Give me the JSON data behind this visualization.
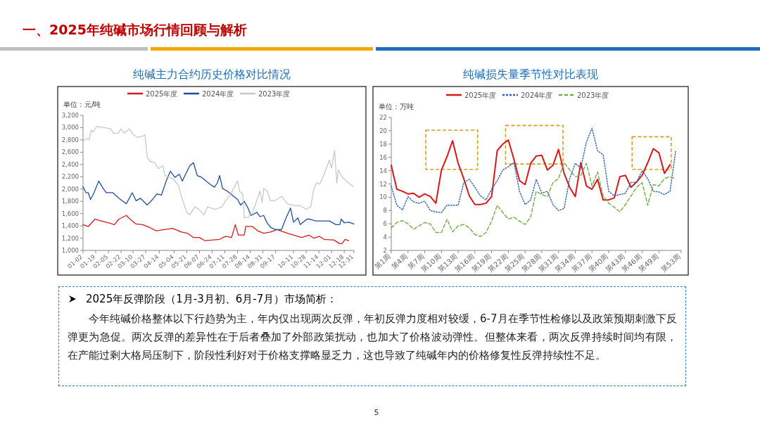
{
  "chart_data": [
    {
      "type": "other",
      "title": "一、2025年纯碱市场行情回顾与解析",
      "annotations": [
        "5"
      ]
    },
    {
      "type": "line",
      "title": "纯碱主力合约历史价格对比情况",
      "ylabel": "单位：元/吨",
      "legend": "top",
      "line_style": "solid",
      "xlim": [
        "--01-02",
        "--12-31"
      ],
      "ylim": [
        1000,
        3200
      ],
      "xticks": [
        {
          "value": "--01-02",
          "label": "01-02"
        },
        {
          "value": "--01-19",
          "label": "01-19"
        },
        {
          "value": "--02-05",
          "label": "02-05"
        },
        {
          "value": "--02-22",
          "label": "02-22"
        },
        {
          "value": "--03-10",
          "label": "03-10"
        },
        {
          "value": "--03-27",
          "label": "03-27"
        },
        {
          "value": "--04-14",
          "label": "04-14"
        },
        {
          "value": "--05-04",
          "label": "05-04"
        },
        {
          "value": "--05-21",
          "label": "05-21"
        },
        {
          "value": "--06-07",
          "label": "06-07"
        },
        {
          "value": "--06-24",
          "label": "06-24"
        },
        {
          "value": "--07-11",
          "label": "07-11"
        },
        {
          "value": "--07-28",
          "label": "07-28"
        },
        {
          "value": "--08-14",
          "label": "08-14"
        },
        {
          "value": "--08-31",
          "label": "08-31"
        },
        {
          "value": "--09-17",
          "label": "09-17"
        },
        {
          "value": "--10-11",
          "label": "10-11"
        },
        {
          "value": "--10-28",
          "label": "10-28"
        },
        {
          "value": "--11-14",
          "label": "11-14"
        },
        {
          "value": "--12-01",
          "label": "12-01"
        },
        {
          "value": "--12-18",
          "label": "12-18"
        },
        {
          "value": "--12-31",
          "label": "12-31"
        }
      ],
      "yticks": [
        {
          "value": 1000,
          "label": "1,000"
        },
        {
          "value": 1200,
          "label": "1,200"
        },
        {
          "value": 1400,
          "label": "1,400"
        },
        {
          "value": 1600,
          "label": "1,600"
        },
        {
          "value": 1800,
          "label": "1,800"
        },
        {
          "value": 2000,
          "label": "2,000"
        },
        {
          "value": 2200,
          "label": "2,200"
        },
        {
          "value": 2400,
          "label": "2,400"
        },
        {
          "value": 2600,
          "label": "2,600"
        },
        {
          "value": 2800,
          "label": "2,800"
        },
        {
          "value": 3000,
          "label": "3,000"
        },
        {
          "value": 3200,
          "label": "3,200"
        }
      ],
      "series": [
        {
          "name": "2025年度",
          "color": "#d7191c",
          "x": [
            "--01-02",
            "--01-09",
            "--01-18",
            "--01-23",
            "--02-08",
            "--02-13",
            "--02-19",
            "--03-01",
            "--03-06",
            "--03-14",
            "--03-23",
            "--04-02",
            "--04-10",
            "--04-21",
            "--05-02",
            "--05-14",
            "--05-22",
            "--05-30",
            "--06-07",
            "--06-14",
            "--06-25",
            "--07-04",
            "--07-12",
            "--07-20",
            "--07-25",
            "--07-29",
            "--08-06",
            "--08-08",
            "--08-17",
            "--08-24",
            "--09-01",
            "--09-10",
            "--09-19",
            "--10-03",
            "--10-14",
            "--10-22",
            "--11-01",
            "--11-07",
            "--11-15",
            "--11-21",
            "--12-04",
            "--12-12",
            "--12-15",
            "--12-19",
            "--12-24"
          ],
          "values": [
            1420,
            1390,
            1510,
            1490,
            1440,
            1420,
            1510,
            1570,
            1510,
            1430,
            1420,
            1370,
            1320,
            1340,
            1360,
            1300,
            1280,
            1210,
            1210,
            1160,
            1170,
            1180,
            1230,
            1210,
            1420,
            1250,
            1250,
            1390,
            1390,
            1320,
            1280,
            1300,
            1340,
            1280,
            1240,
            1210,
            1250,
            1200,
            1230,
            1180,
            1170,
            1110,
            1110,
            1180,
            1160
          ]
        },
        {
          "name": "2024年度",
          "color": "#1f4e9c",
          "x": [
            "--01-02",
            "--01-06",
            "--01-09",
            "--01-12",
            "--01-16",
            "--01-23",
            "--01-29",
            "--02-02",
            "--02-11",
            "--02-19",
            "--03-01",
            "--03-09",
            "--03-14",
            "--03-20",
            "--03-29",
            "--04-05",
            "--04-11",
            "--04-17",
            "--04-24",
            "--04-29",
            "--05-05",
            "--05-11",
            "--05-15",
            "--05-25",
            "--05-30",
            "--06-04",
            "--06-10",
            "--06-16",
            "--06-21",
            "--06-27",
            "--07-01",
            "--07-04",
            "--07-08",
            "--07-15",
            "--07-21",
            "--07-28",
            "--08-01",
            "--08-06",
            "--08-11",
            "--08-15",
            "--08-23",
            "--08-27",
            "--09-01",
            "--09-06",
            "--09-11",
            "--09-17",
            "--09-25",
            "--10-01",
            "--10-07",
            "--10-11",
            "--10-17",
            "--10-20",
            "--10-29",
            "--11-01",
            "--11-10",
            "--11-18",
            "--11-28",
            "--12-07",
            "--12-12",
            "--12-14",
            "--12-18",
            "--12-24",
            "--12-31"
          ],
          "values": [
            2040,
            1940,
            1940,
            1830,
            1920,
            2130,
            2010,
            1940,
            1940,
            1850,
            1760,
            1940,
            1810,
            1850,
            1740,
            1830,
            1920,
            1900,
            2150,
            2290,
            2190,
            2240,
            2130,
            2380,
            2430,
            2220,
            2190,
            2130,
            2080,
            2030,
            2100,
            2220,
            2010,
            1960,
            1900,
            1830,
            1740,
            1800,
            1690,
            1570,
            1620,
            1550,
            1570,
            1440,
            1370,
            1340,
            1340,
            1530,
            1690,
            1460,
            1530,
            1420,
            1510,
            1510,
            1480,
            1480,
            1480,
            1420,
            1420,
            1510,
            1450,
            1460,
            1430
          ]
        },
        {
          "name": "2023年度",
          "color": "#c8c8c8",
          "x": [
            "--01-02",
            "--01-06",
            "--01-10",
            "--01-13",
            "--01-16",
            "--01-20",
            "--01-30",
            "--02-08",
            "--02-12",
            "--02-18",
            "--02-22",
            "--02-26",
            "--03-05",
            "--03-10",
            "--03-16",
            "--03-23",
            "--03-26",
            "--03-29",
            "--04-02",
            "--04-08",
            "--04-13",
            "--04-19",
            "--04-22",
            "--05-02",
            "--05-10",
            "--05-14",
            "--05-21",
            "--05-25",
            "--06-01",
            "--06-07",
            "--06-13",
            "--06-18",
            "--06-28",
            "--07-07",
            "--07-12",
            "--07-18",
            "--07-28",
            "--07-31",
            "--08-04",
            "--08-06",
            "--08-11",
            "--08-17",
            "--08-24",
            "--08-27",
            "--08-30",
            "--09-01",
            "--09-06",
            "--09-10",
            "--09-16",
            "--09-25",
            "--10-03",
            "--10-12",
            "--10-20",
            "--10-28",
            "--11-03",
            "--11-07",
            "--11-11",
            "--11-15",
            "--11-21",
            "--11-28",
            "--12-01",
            "--12-05",
            "--12-08",
            "--12-10",
            "--12-15",
            "--12-21",
            "--12-30"
          ],
          "values": [
            2770,
            2820,
            2800,
            2960,
            2930,
            3020,
            3000,
            2980,
            2910,
            2910,
            2980,
            2910,
            2980,
            2890,
            2840,
            2860,
            2880,
            2520,
            2450,
            2430,
            2330,
            2380,
            2220,
            2170,
            2060,
            1870,
            1620,
            1580,
            1710,
            1660,
            1580,
            1710,
            1670,
            1710,
            1810,
            1900,
            2130,
            1960,
            1920,
            1530,
            1540,
            1620,
            1850,
            1970,
            1780,
            2010,
            1960,
            1810,
            1810,
            1880,
            1760,
            1730,
            1730,
            1670,
            1710,
            1990,
            2100,
            2080,
            2240,
            2470,
            2340,
            2630,
            2100,
            2310,
            2200,
            2130,
            2040
          ]
        }
      ]
    },
    {
      "type": "line",
      "title": "纯碱损失量季节性对比表现",
      "ylabel": "单位：万吨",
      "legend": "top",
      "ylim": [
        2,
        22
      ],
      "categories": [
        "第1周",
        null,
        null,
        "第4周",
        null,
        null,
        "第7周",
        null,
        null,
        "第10周",
        null,
        null,
        "第13周",
        null,
        null,
        "第16周",
        null,
        null,
        "第19周",
        null,
        null,
        "第22周",
        null,
        null,
        "第25周",
        null,
        null,
        "第28周",
        null,
        null,
        "第31周",
        null,
        null,
        "第34周",
        null,
        null,
        "第37周",
        null,
        null,
        "第40周",
        null,
        null,
        "第43周",
        null,
        null,
        "第46周",
        null,
        null,
        "第49周",
        null,
        null,
        null,
        "第53周"
      ],
      "yticks": [
        2,
        4,
        6,
        8,
        10,
        12,
        14,
        16,
        18,
        20,
        22
      ],
      "series": [
        {
          "name": "2025年度",
          "color": "#d7191c",
          "line_style": "solid",
          "values": [
            14.8,
            11.2,
            10.9,
            10.5,
            10.6,
            10.0,
            10.5,
            10.1,
            9.1,
            14.1,
            16.1,
            18.5,
            15.1,
            12.8,
            10.2,
            8.9,
            8.9,
            9.1,
            10.1,
            17.0,
            18.0,
            18.6,
            15.7,
            12.5,
            11.9,
            15.1,
            16.2,
            16.3,
            14.1,
            14.8,
            17.2,
            13.6,
            11.5,
            10.1,
            15.2,
            11.7,
            11.2,
            12.7,
            9.6,
            9.6,
            9.9,
            13.1,
            13.3,
            11.5,
            12.3,
            13.3,
            15.2,
            17.3,
            16.7,
            13.6,
            14.9,
            null,
            null
          ]
        },
        {
          "name": "2024年度",
          "color": "#2e5fb3",
          "line_style": "dotted",
          "values": [
            11.7,
            8.8,
            8.1,
            10.1,
            9.3,
            9.1,
            9.4,
            8.0,
            7.8,
            7.7,
            8.8,
            8.8,
            8.8,
            12.2,
            12.7,
            11.5,
            10.2,
            9.6,
            11.2,
            12.5,
            14.1,
            14.6,
            15.2,
            10.9,
            8.9,
            9.6,
            12.7,
            10.6,
            10.9,
            8.9,
            8.0,
            8.3,
            12.8,
            15.1,
            14.4,
            18.3,
            20.4,
            17.0,
            16.4,
            10.9,
            10.2,
            10.4,
            10.6,
            12.2,
            12.3,
            14.0,
            12.8,
            10.9,
            10.8,
            10.4,
            10.9,
            16.9,
            null
          ]
        },
        {
          "name": "2023年度",
          "color": "#70ad47",
          "line_style": "dashed",
          "values": [
            5.4,
            6.2,
            6.5,
            6.0,
            5.2,
            5.7,
            6.2,
            6.0,
            4.7,
            4.7,
            6.7,
            4.8,
            5.7,
            5.9,
            5.4,
            4.4,
            4.1,
            4.7,
            6.4,
            8.8,
            7.7,
            6.7,
            7.0,
            6.4,
            5.9,
            7.0,
            10.9,
            10.4,
            10.1,
            12.2,
            12.8,
            15.2,
            14.1,
            13.1,
            13.3,
            15.1,
            11.7,
            13.8,
            10.2,
            9.1,
            8.5,
            7.8,
            8.9,
            10.2,
            11.5,
            12.2,
            8.8,
            11.9,
            11.7,
            12.8,
            13.1,
            12.8,
            null
          ]
        }
      ]
    },
    {
      "type": "other",
      "title": "2025年反弹阶段（1月-3月初、6月-7月）市场简析：",
      "annotations": [
        "今年纯碱价格整体以下行趋势为主，年内仅出现两次反弹，年初反弹力度相对较缓，6-7月在季节性检修以及政策预期刺激下反弹更为急促。两次反弹的差异性在于后者叠加了外部政策扰动，也加大了价格波动弹性。但整体来看，两次反弹持续时间均有限，在产能过剩大格局压制下，阶段性利好对于价格支撑略显乏力，这也导致了纯碱年内的价格修复性反弹持续性不足。"
      ]
    }
  ]
}
